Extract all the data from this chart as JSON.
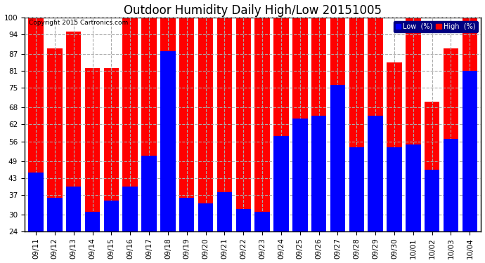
{
  "title": "Outdoor Humidity Daily High/Low 20151005",
  "copyright": "Copyright 2015 Cartronics.com",
  "labels": [
    "09/11",
    "09/12",
    "09/13",
    "09/14",
    "09/15",
    "09/16",
    "09/17",
    "09/18",
    "09/19",
    "09/20",
    "09/21",
    "09/22",
    "09/23",
    "09/24",
    "09/25",
    "09/26",
    "09/27",
    "09/28",
    "09/29",
    "09/30",
    "10/01",
    "10/02",
    "10/03",
    "10/04"
  ],
  "high": [
    100,
    89,
    95,
    82,
    82,
    100,
    100,
    100,
    100,
    100,
    100,
    100,
    100,
    100,
    100,
    100,
    100,
    100,
    100,
    84,
    100,
    70,
    89,
    100
  ],
  "low": [
    45,
    36,
    40,
    31,
    35,
    40,
    51,
    88,
    36,
    34,
    38,
    32,
    31,
    58,
    64,
    65,
    76,
    54,
    65,
    54,
    55,
    46,
    57,
    81
  ],
  "high_color": "#FF0000",
  "low_color": "#0000FF",
  "bg_color": "#FFFFFF",
  "grid_color": "#AAAAAA",
  "ylim_min": 24,
  "ylim_max": 100,
  "yticks": [
    24,
    30,
    37,
    43,
    49,
    56,
    62,
    68,
    75,
    81,
    87,
    94,
    100
  ],
  "bar_width": 0.8,
  "title_fontsize": 12,
  "tick_fontsize": 7.5,
  "legend_low_label": "Low  (%)",
  "legend_high_label": "High  (%)"
}
